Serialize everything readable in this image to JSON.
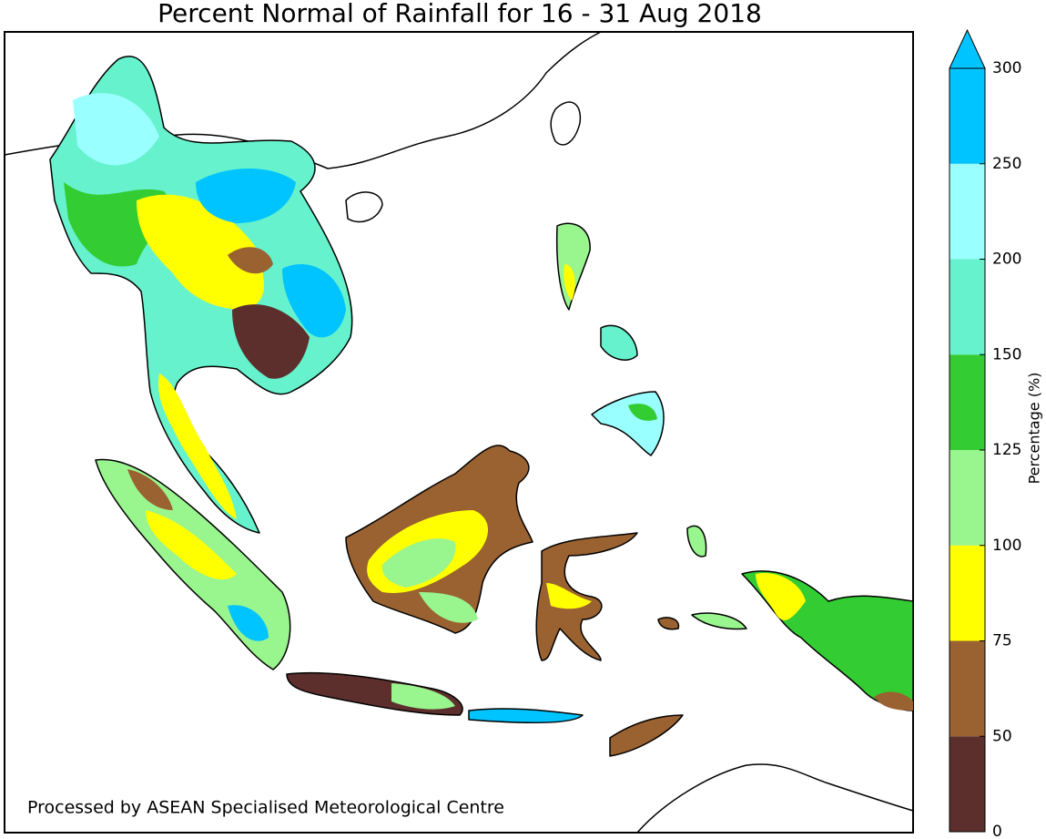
{
  "title": "Percent Normal of Rainfall for 16 - 31 Aug 2018",
  "credit": "Processed by ASEAN Specialised Meteorological Centre",
  "colorbar": {
    "label": "Percentage (%)",
    "ticks": [
      0,
      50,
      75,
      100,
      125,
      150,
      200,
      250,
      300
    ],
    "colors": [
      "#5c2f2c",
      "#9a6131",
      "#ffff00",
      "#99f58e",
      "#33cc33",
      "#66f2cc",
      "#99ffff",
      "#00c4ff"
    ],
    "extend": "max"
  }
}
